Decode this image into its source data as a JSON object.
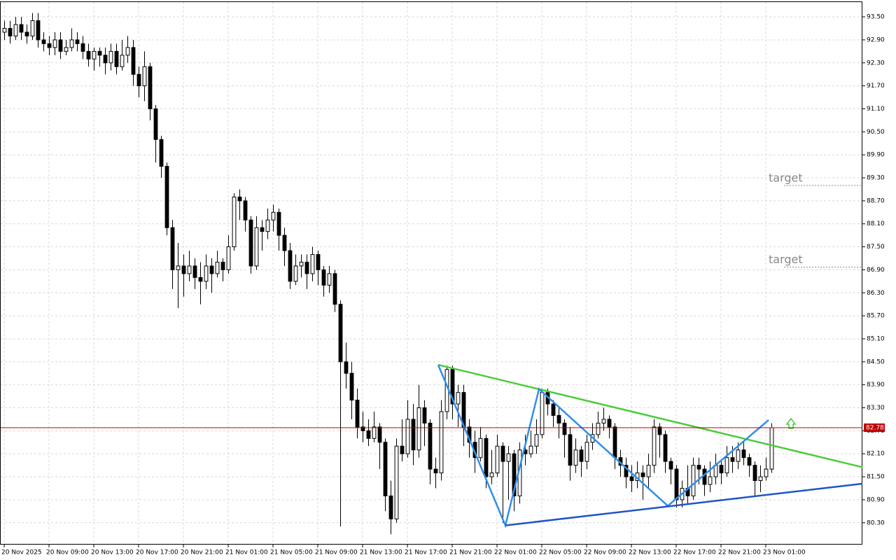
{
  "chart_data": {
    "type": "candlestick",
    "candles": [
      [
        93.1,
        93.4,
        92.9,
        93.2
      ],
      [
        93.2,
        93.4,
        92.8,
        93.0
      ],
      [
        93.0,
        93.5,
        92.9,
        93.3
      ],
      [
        93.3,
        93.5,
        92.9,
        93.1
      ],
      [
        93.1,
        93.3,
        92.8,
        93.0
      ],
      [
        93.0,
        93.6,
        92.9,
        93.4
      ],
      [
        93.4,
        93.6,
        92.7,
        92.9
      ],
      [
        92.9,
        93.1,
        92.6,
        92.8
      ],
      [
        92.8,
        93.0,
        92.5,
        92.7
      ],
      [
        92.7,
        93.1,
        92.5,
        92.9
      ],
      [
        92.9,
        93.1,
        92.4,
        92.6
      ],
      [
        92.6,
        92.9,
        92.5,
        92.7
      ],
      [
        92.7,
        93.2,
        92.6,
        92.9
      ],
      [
        92.9,
        93.1,
        92.6,
        92.8
      ],
      [
        92.8,
        93.0,
        92.4,
        92.6
      ],
      [
        92.6,
        92.8,
        92.2,
        92.4
      ],
      [
        92.4,
        92.7,
        92.1,
        92.6
      ],
      [
        92.6,
        92.7,
        92.2,
        92.5
      ],
      [
        92.5,
        92.7,
        92.0,
        92.3
      ],
      [
        92.3,
        92.8,
        92.1,
        92.6
      ],
      [
        92.6,
        92.8,
        92.0,
        92.2
      ],
      [
        92.2,
        92.9,
        92.1,
        92.5
      ],
      [
        92.5,
        93.0,
        92.3,
        92.7
      ],
      [
        92.7,
        92.9,
        91.7,
        92.0
      ],
      [
        92.0,
        92.2,
        91.4,
        91.7
      ],
      [
        91.7,
        92.6,
        91.3,
        92.2
      ],
      [
        92.2,
        92.3,
        90.8,
        91.1
      ],
      [
        91.1,
        91.2,
        89.7,
        90.3
      ],
      [
        90.3,
        90.4,
        89.3,
        89.6
      ],
      [
        89.6,
        89.7,
        87.8,
        88.0
      ],
      [
        88.0,
        88.2,
        86.4,
        86.9
      ],
      [
        86.9,
        87.6,
        85.9,
        87.0
      ],
      [
        87.0,
        87.3,
        86.2,
        86.8
      ],
      [
        86.8,
        87.4,
        86.6,
        87.0
      ],
      [
        87.0,
        87.2,
        86.4,
        86.7
      ],
      [
        86.7,
        87.1,
        86.0,
        86.6
      ],
      [
        86.6,
        87.3,
        86.4,
        87.0
      ],
      [
        87.0,
        87.2,
        86.3,
        86.8
      ],
      [
        86.8,
        87.4,
        86.7,
        87.1
      ],
      [
        87.1,
        87.2,
        86.6,
        86.9
      ],
      [
        86.9,
        87.8,
        86.8,
        87.5
      ],
      [
        87.5,
        88.9,
        87.4,
        88.8
      ],
      [
        88.8,
        89.0,
        88.2,
        88.7
      ],
      [
        88.7,
        88.8,
        87.9,
        88.2
      ],
      [
        88.2,
        88.3,
        86.8,
        87.0
      ],
      [
        87.0,
        88.3,
        86.9,
        88.0
      ],
      [
        88.0,
        88.2,
        87.4,
        87.9
      ],
      [
        87.9,
        88.5,
        87.7,
        88.2
      ],
      [
        88.2,
        88.6,
        87.9,
        88.4
      ],
      [
        88.4,
        88.5,
        87.4,
        87.8
      ],
      [
        87.8,
        88.0,
        87.0,
        87.4
      ],
      [
        87.4,
        87.6,
        86.4,
        86.6
      ],
      [
        86.6,
        87.3,
        86.5,
        87.0
      ],
      [
        87.0,
        87.3,
        86.7,
        87.1
      ],
      [
        87.1,
        87.3,
        86.4,
        86.8
      ],
      [
        86.8,
        87.5,
        86.6,
        87.3
      ],
      [
        87.3,
        87.4,
        86.5,
        86.9
      ],
      [
        86.9,
        87.0,
        86.2,
        86.5
      ],
      [
        86.5,
        87.0,
        86.3,
        86.8
      ],
      [
        86.8,
        86.9,
        85.8,
        86.0
      ],
      [
        86.0,
        86.1,
        80.2,
        84.5
      ],
      [
        84.5,
        85.0,
        83.8,
        84.2
      ],
      [
        84.2,
        84.5,
        83.0,
        83.5
      ],
      [
        83.5,
        83.8,
        82.5,
        82.8
      ],
      [
        82.8,
        83.2,
        82.4,
        82.7
      ],
      [
        82.7,
        83.0,
        82.3,
        82.5
      ],
      [
        82.5,
        83.2,
        82.4,
        82.8
      ],
      [
        82.8,
        82.9,
        81.7,
        82.4
      ],
      [
        82.4,
        82.5,
        80.6,
        81.0
      ],
      [
        81.0,
        81.4,
        80.0,
        80.4
      ],
      [
        80.4,
        82.5,
        80.3,
        82.3
      ],
      [
        82.3,
        83.0,
        81.9,
        82.1
      ],
      [
        82.1,
        83.5,
        82.0,
        83.0
      ],
      [
        83.0,
        83.4,
        81.8,
        82.2
      ],
      [
        82.2,
        83.9,
        82.0,
        83.3
      ],
      [
        83.3,
        83.5,
        82.3,
        82.9
      ],
      [
        82.9,
        83.0,
        81.3,
        81.7
      ],
      [
        81.7,
        82.0,
        81.2,
        81.6
      ],
      [
        81.6,
        83.5,
        81.4,
        83.2
      ],
      [
        83.2,
        84.4,
        83.0,
        84.3
      ],
      [
        84.3,
        84.4,
        83.0,
        83.4
      ],
      [
        83.4,
        83.9,
        82.8,
        83.7
      ],
      [
        83.7,
        83.9,
        82.3,
        82.8
      ],
      [
        82.8,
        83.0,
        82.0,
        82.4
      ],
      [
        82.4,
        82.7,
        81.6,
        82.0
      ],
      [
        82.0,
        82.8,
        81.9,
        82.5
      ],
      [
        82.5,
        82.6,
        81.2,
        81.5
      ],
      [
        81.5,
        82.2,
        81.3,
        81.6
      ],
      [
        81.6,
        82.6,
        81.5,
        82.3
      ],
      [
        82.3,
        82.4,
        80.3,
        81.9
      ],
      [
        81.9,
        82.3,
        80.9,
        82.1
      ],
      [
        82.1,
        82.2,
        80.6,
        81.0
      ],
      [
        81.0,
        82.4,
        80.8,
        82.2
      ],
      [
        82.2,
        82.6,
        81.8,
        82.1
      ],
      [
        82.1,
        82.7,
        82.0,
        82.3
      ],
      [
        82.3,
        83.0,
        82.1,
        82.6
      ],
      [
        82.6,
        83.8,
        82.5,
        83.7
      ],
      [
        83.7,
        83.8,
        83.1,
        83.4
      ],
      [
        83.4,
        83.5,
        82.8,
        83.1
      ],
      [
        83.1,
        83.3,
        82.5,
        82.9
      ],
      [
        82.9,
        83.0,
        82.0,
        82.6
      ],
      [
        82.6,
        82.8,
        81.4,
        81.8
      ],
      [
        81.8,
        82.5,
        81.6,
        82.2
      ],
      [
        82.2,
        82.3,
        81.5,
        81.9
      ],
      [
        81.9,
        82.6,
        81.7,
        82.4
      ],
      [
        82.4,
        82.9,
        82.2,
        82.6
      ],
      [
        82.6,
        83.2,
        82.5,
        82.9
      ],
      [
        82.9,
        83.3,
        82.7,
        83.0
      ],
      [
        83.0,
        83.1,
        82.5,
        82.8
      ],
      [
        82.8,
        82.9,
        81.7,
        82.0
      ],
      [
        82.0,
        82.2,
        81.5,
        81.8
      ],
      [
        81.8,
        82.0,
        81.2,
        81.5
      ],
      [
        81.5,
        81.8,
        81.1,
        81.4
      ],
      [
        81.4,
        81.9,
        81.2,
        81.6
      ],
      [
        81.6,
        81.8,
        80.9,
        81.5
      ],
      [
        81.5,
        82.1,
        81.2,
        81.8
      ],
      [
        81.8,
        83.0,
        81.6,
        82.8
      ],
      [
        82.8,
        82.9,
        82.0,
        82.6
      ],
      [
        82.6,
        82.7,
        81.6,
        81.9
      ],
      [
        81.9,
        82.0,
        81.3,
        81.7
      ],
      [
        81.7,
        81.8,
        80.7,
        80.9
      ],
      [
        80.9,
        81.4,
        80.7,
        81.2
      ],
      [
        81.2,
        81.8,
        80.8,
        81.0
      ],
      [
        81.0,
        82.0,
        80.9,
        81.8
      ],
      [
        81.8,
        82.0,
        81.3,
        81.7
      ],
      [
        81.7,
        81.8,
        81.0,
        81.3
      ],
      [
        81.3,
        81.9,
        81.1,
        81.5
      ],
      [
        81.5,
        82.1,
        81.3,
        81.8
      ],
      [
        81.8,
        81.9,
        81.3,
        81.6
      ],
      [
        81.6,
        82.3,
        81.5,
        82.0
      ],
      [
        82.0,
        82.3,
        81.6,
        81.9
      ],
      [
        81.9,
        82.4,
        81.7,
        82.2
      ],
      [
        82.2,
        82.4,
        81.8,
        82.0
      ],
      [
        82.0,
        82.1,
        81.5,
        81.8
      ],
      [
        81.8,
        81.9,
        81.0,
        81.4
      ],
      [
        81.4,
        81.8,
        81.1,
        81.5
      ],
      [
        81.5,
        82.0,
        81.4,
        81.7
      ],
      [
        81.7,
        82.9,
        81.6,
        82.78
      ]
    ],
    "xlim": [
      -0.75,
      153.25
    ],
    "ylim": [
      79.73,
      93.94
    ],
    "xticks": [
      {
        "value": 0,
        "label": "20 Nov 2025"
      },
      {
        "value": 8,
        "label": "20 Nov 09:00"
      },
      {
        "value": 16,
        "label": "20 Nov 13:00"
      },
      {
        "value": 24,
        "label": "20 Nov 17:00"
      },
      {
        "value": 32,
        "label": "20 Nov 21:00"
      },
      {
        "value": 40,
        "label": "21 Nov 01:00"
      },
      {
        "value": 48,
        "label": "21 Nov 05:00"
      },
      {
        "value": 56,
        "label": "21 Nov 09:00"
      },
      {
        "value": 64,
        "label": "21 Nov 13:00"
      },
      {
        "value": 72,
        "label": "21 Nov 17:00"
      },
      {
        "value": 80,
        "label": "21 Nov 21:00"
      },
      {
        "value": 88,
        "label": "22 Nov 01:00"
      },
      {
        "value": 96,
        "label": "22 Nov 05:00"
      },
      {
        "value": 104,
        "label": "22 Nov 09:00"
      },
      {
        "value": 112,
        "label": "22 Nov 13:00"
      },
      {
        "value": 120,
        "label": "22 Nov 17:00"
      },
      {
        "value": 128,
        "label": "22 Nov 21:00"
      },
      {
        "value": 136,
        "label": "23 Nov 01:00"
      }
    ],
    "yticks": [
      {
        "value": 93.5,
        "label": "93.50"
      },
      {
        "value": 92.9,
        "label": "92.90"
      },
      {
        "value": 92.3,
        "label": "92.30"
      },
      {
        "value": 91.7,
        "label": "91.70"
      },
      {
        "value": 91.1,
        "label": "91.10"
      },
      {
        "value": 90.5,
        "label": "90.50"
      },
      {
        "value": 89.9,
        "label": "89.90"
      },
      {
        "value": 89.3,
        "label": "89.30"
      },
      {
        "value": 88.7,
        "label": "88.70"
      },
      {
        "value": 88.1,
        "label": "88.10"
      },
      {
        "value": 87.5,
        "label": "87.50"
      },
      {
        "value": 86.9,
        "label": "86.90"
      },
      {
        "value": 86.3,
        "label": "86.30"
      },
      {
        "value": 85.7,
        "label": "85.70"
      },
      {
        "value": 85.1,
        "label": "85.10"
      },
      {
        "value": 84.5,
        "label": "84.50"
      },
      {
        "value": 83.9,
        "label": "83.90"
      },
      {
        "value": 83.3,
        "label": "83.30"
      },
      {
        "value": 82.7,
        "label": "82.70"
      },
      {
        "value": 82.1,
        "label": "82.10"
      },
      {
        "value": 81.5,
        "label": "81.50"
      },
      {
        "value": 80.9,
        "label": "80.90"
      },
      {
        "value": 80.3,
        "label": "80.30"
      }
    ],
    "grid": true,
    "up_color": "#ffffff",
    "down_color": "#000000",
    "wick_color": "#000000",
    "current_price": 82.78,
    "current_price_color": "#c00000",
    "targets": [
      {
        "label": "target",
        "value": 89.1
      },
      {
        "label": "target",
        "value": 86.97
      }
    ],
    "lines": [
      {
        "color": "#4ccc3a",
        "points": [
          [
            77.5,
            84.42
          ],
          [
            153.25,
            81.75
          ]
        ]
      },
      {
        "color": "#2f8fe8",
        "points": [
          [
            77.5,
            84.42
          ],
          [
            89.5,
            80.23
          ],
          [
            95.5,
            83.79
          ],
          [
            118.5,
            80.74
          ],
          [
            136.5,
            82.98
          ]
        ]
      },
      {
        "color": "#1f55c6",
        "points": [
          [
            89.5,
            80.23
          ],
          [
            153.25,
            81.32
          ]
        ]
      }
    ]
  }
}
